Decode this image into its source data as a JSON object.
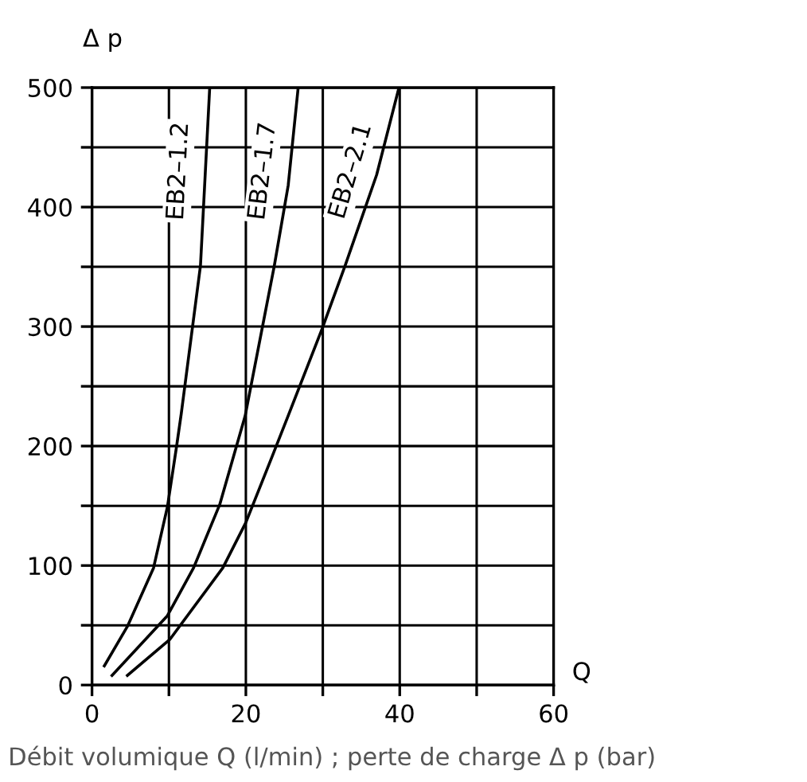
{
  "chart_data": {
    "type": "line",
    "xlabel": "Q",
    "ylabel": "Δ p",
    "annotations": [
      "Débit volumique Q (l/min) ; perte de charge Δ p (bar)"
    ],
    "xlim": [
      0,
      60
    ],
    "ylim": [
      0,
      500
    ],
    "xticks": [
      0,
      {
        "value": 10,
        "label": null
      },
      20,
      {
        "value": 30,
        "label": null
      },
      40,
      {
        "value": 50,
        "label": null
      },
      60
    ],
    "yticks": [
      0,
      {
        "value": 50,
        "label": null
      },
      100,
      {
        "value": 150,
        "label": null
      },
      200,
      {
        "value": 250,
        "label": null
      },
      300,
      {
        "value": 350,
        "label": null
      },
      400,
      {
        "value": 450,
        "label": null
      },
      500
    ],
    "grid": true,
    "marker": "none",
    "line_style": "solid",
    "series": [
      {
        "name": "EB2–1.2",
        "color": "#000000",
        "x": [
          1.6,
          4.6,
          8.0,
          9.8,
          11.0,
          11.6,
          14.1,
          15.3
        ],
        "values": [
          16,
          49,
          98,
          149,
          200,
          227,
          351,
          500
        ]
      },
      {
        "name": "EB2–1.7",
        "color": "#000000",
        "x": [
          2.6,
          9.8,
          13.2,
          16.6,
          19.9,
          23.7,
          25.5,
          26.8
        ],
        "values": [
          8,
          58,
          98,
          151,
          225,
          351,
          418,
          500
        ]
      },
      {
        "name": "EB2–2.1",
        "color": "#000000",
        "x": [
          4.6,
          10.1,
          17.0,
          20.0,
          23.4,
          25.6,
          29.9,
          32.9,
          37.0,
          39.9
        ],
        "values": [
          8,
          38,
          98,
          136,
          191,
          227,
          298,
          351,
          427,
          500
        ]
      }
    ]
  }
}
